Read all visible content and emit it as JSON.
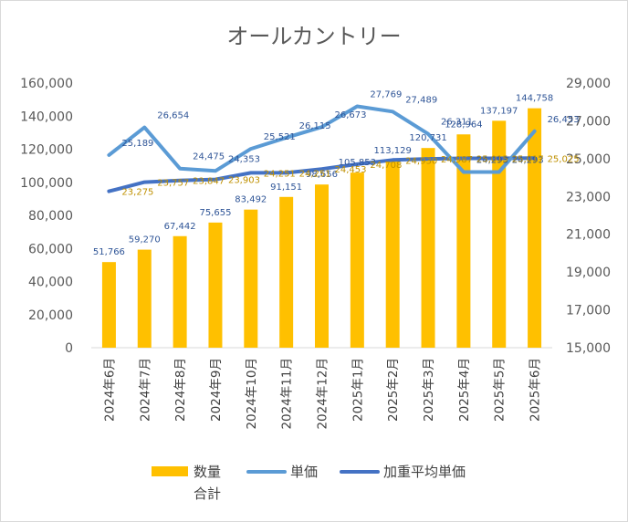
{
  "chart_data": {
    "type": "bar",
    "title": "オールカントリー",
    "categories": [
      "2024年6月",
      "2024年7月",
      "2024年8月",
      "2024年9月",
      "2024年10月",
      "2024年11月",
      "2024年12月",
      "2025年1月",
      "2025年2月",
      "2025年3月",
      "2025年4月",
      "2025年5月",
      "2025年6月"
    ],
    "y_left": {
      "min": 0,
      "max": 160000,
      "ticks": [
        "0",
        "20,000",
        "40,000",
        "60,000",
        "80,000",
        "100,000",
        "120,000",
        "140,000",
        "160,000"
      ]
    },
    "y_right": {
      "min": 15000,
      "max": 29000,
      "ticks": [
        "15,000",
        "17,000",
        "19,000",
        "21,000",
        "23,000",
        "25,000",
        "27,000",
        "29,000"
      ]
    },
    "grid": false,
    "legend_position": "bottom",
    "series": [
      {
        "name": "数量合計",
        "type": "bar",
        "axis": "left",
        "color": "#FFC000",
        "values": [
          51766,
          59270,
          67442,
          75655,
          83492,
          91151,
          98656,
          105853,
          113129,
          120731,
          128964,
          137197,
          144758
        ],
        "labels": [
          "51,766",
          "59,270",
          "67,442",
          "75,655",
          "83,492",
          "91,151",
          "98,656",
          "105,853",
          "113,129",
          "120,731",
          "128,964",
          "137,197",
          "144,758"
        ],
        "label_color": "#2F5597"
      },
      {
        "name": "単価",
        "type": "line",
        "axis": "right",
        "color": "#5B9BD5",
        "values": [
          25189,
          26654,
          24475,
          24353,
          25521,
          26115,
          26673,
          27769,
          27489,
          26311,
          24293,
          24293,
          26453
        ],
        "labels": [
          "25,189",
          "26,654",
          "24,475",
          "24,353",
          "25,521",
          "26,115",
          "26,673",
          "27,769",
          "27,489",
          "26,311",
          "24,293",
          "24,293",
          "26,453"
        ],
        "label_color": "#2F5597"
      },
      {
        "name": "加重平均単価",
        "type": "line",
        "axis": "right",
        "color": "#4472C4",
        "values": [
          23275,
          23757,
          23847,
          23903,
          24251,
          24251,
          24453,
          24708,
          24930,
          24987,
          25015,
          25017,
          25025
        ],
        "labels": [
          "23,275",
          "23,757",
          "23,847",
          "23,903",
          "24,251",
          "24,251",
          "24,453",
          "24,708",
          "24,930",
          "24,987",
          "25,015",
          "25,017",
          "25,025"
        ],
        "label_color": "#BF9000"
      }
    ]
  }
}
